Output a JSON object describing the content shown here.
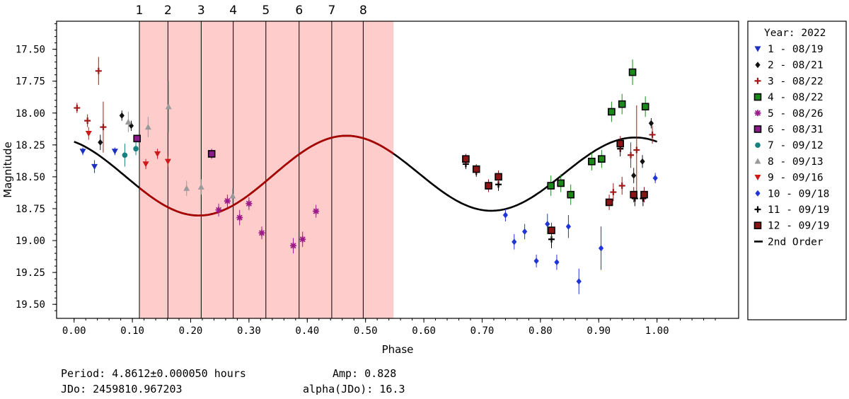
{
  "chart_data": {
    "type": "scatter",
    "xlabel": "Phase",
    "ylabel": "Magnitude",
    "xlim": [
      -0.03,
      1.14
    ],
    "ylim": [
      19.61,
      17.28
    ],
    "y_inverted": true,
    "xticks": [
      0.0,
      0.1,
      0.2,
      0.3,
      0.4,
      0.5,
      0.6,
      0.7,
      0.8,
      0.9,
      1.0
    ],
    "xtick_labels": [
      "0.00",
      "0.10",
      "0.20",
      "0.30",
      "0.40",
      "0.50",
      "0.60",
      "0.70",
      "0.80",
      "0.90",
      "1.00"
    ],
    "yticks": [
      17.5,
      17.75,
      18.0,
      18.25,
      18.5,
      18.75,
      19.0,
      19.25,
      19.5
    ],
    "ytick_labels": [
      "17.50",
      "17.75",
      "18.00",
      "18.25",
      "18.50",
      "18.75",
      "19.00",
      "19.25",
      "19.50"
    ],
    "shaded_region": {
      "x_start": 0.112,
      "x_end": 0.548,
      "color": "#ffcccc"
    },
    "markers": [
      {
        "label": "1",
        "x": 0.112
      },
      {
        "label": "2",
        "x": 0.161
      },
      {
        "label": "3",
        "x": 0.218
      },
      {
        "label": "4",
        "x": 0.273
      },
      {
        "label": "5",
        "x": 0.329
      },
      {
        "label": "6",
        "x": 0.386
      },
      {
        "label": "7",
        "x": 0.442
      },
      {
        "label": "8",
        "x": 0.496
      }
    ],
    "fit": {
      "name": "2nd Order",
      "mean": 18.485,
      "amp1": 0.02,
      "phi1": 1.0,
      "amp2": 0.3,
      "phi2": 2.7,
      "highlight_range": [
        0.112,
        0.548
      ],
      "highlight_color": "#aa0000",
      "color": "#000000"
    },
    "legend_title": "Year: 2022",
    "series": [
      {
        "name": "1 - 08/19",
        "marker": "tri-down",
        "color": "#1c2fc4",
        "points": [
          [
            0.015,
            18.3,
            0.03
          ],
          [
            0.035,
            18.42,
            0.05
          ],
          [
            0.07,
            18.3,
            0.03
          ]
        ]
      },
      {
        "name": "2 - 08/21",
        "marker": "diamond",
        "color": "#111111",
        "points": [
          [
            0.045,
            18.23,
            0.06
          ],
          [
            0.082,
            18.02,
            0.04
          ],
          [
            0.098,
            18.1,
            0.04
          ],
          [
            0.96,
            18.49,
            0.06
          ],
          [
            0.975,
            18.38,
            0.05
          ],
          [
            0.99,
            18.08,
            0.04
          ]
        ]
      },
      {
        "name": "3 - 08/22",
        "marker": "plus",
        "color": "#a01818",
        "points": [
          [
            0.005,
            17.96,
            0.04
          ],
          [
            0.023,
            18.06,
            0.05
          ],
          [
            0.042,
            17.67,
            0.11
          ],
          [
            0.05,
            18.11,
            0.2
          ],
          [
            0.925,
            18.62,
            0.07
          ],
          [
            0.94,
            18.57,
            0.07
          ],
          [
            0.955,
            18.33,
            0.1
          ],
          [
            0.965,
            18.29,
            0.35
          ],
          [
            0.992,
            18.17,
            0.07
          ]
        ]
      },
      {
        "name": "4 - 08/22",
        "marker": "square",
        "color": "#1b8a1b",
        "points": [
          [
            0.818,
            18.57,
            0.08
          ],
          [
            0.835,
            18.55,
            0.07
          ],
          [
            0.852,
            18.64,
            0.08
          ],
          [
            0.888,
            18.38,
            0.07
          ],
          [
            0.905,
            18.36,
            0.07
          ],
          [
            0.922,
            17.99,
            0.08
          ],
          [
            0.94,
            17.93,
            0.08
          ],
          [
            0.958,
            17.68,
            0.1
          ],
          [
            0.98,
            17.95,
            0.08
          ]
        ]
      },
      {
        "name": "5 - 08/26",
        "marker": "star",
        "color": "#9c1a8a",
        "points": [
          [
            0.248,
            18.76,
            0.05
          ],
          [
            0.263,
            18.69,
            0.05
          ],
          [
            0.284,
            18.82,
            0.06
          ],
          [
            0.3,
            18.71,
            0.05
          ],
          [
            0.322,
            18.94,
            0.05
          ],
          [
            0.376,
            19.04,
            0.06
          ],
          [
            0.392,
            18.99,
            0.06
          ],
          [
            0.415,
            18.77,
            0.05
          ]
        ]
      },
      {
        "name": "6 - 08/31",
        "marker": "square",
        "color": "#8b1a8b",
        "points": [
          [
            0.108,
            18.2,
            0.03
          ],
          [
            0.236,
            18.32,
            0.04
          ]
        ]
      },
      {
        "name": "7 - 09/12",
        "marker": "circle",
        "color": "#18807e",
        "points": [
          [
            0.087,
            18.33,
            0.09
          ],
          [
            0.106,
            18.28,
            0.05
          ]
        ]
      },
      {
        "name": "8 - 09/13",
        "marker": "tri-up",
        "color": "#9a9a9a",
        "points": [
          [
            0.093,
            18.07,
            0.08
          ],
          [
            0.127,
            18.11,
            0.08
          ],
          [
            0.162,
            17.95,
            0.2
          ],
          [
            0.193,
            18.59,
            0.06
          ],
          [
            0.218,
            18.58,
            0.06
          ],
          [
            0.272,
            18.65,
            0.06
          ]
        ]
      },
      {
        "name": "9 - 09/16",
        "marker": "tri-down",
        "color": "#d01818",
        "points": [
          [
            0.123,
            18.4,
            0.04
          ],
          [
            0.143,
            18.32,
            0.04
          ],
          [
            0.161,
            18.38,
            0.04
          ],
          [
            0.025,
            18.16,
            0.05
          ]
        ]
      },
      {
        "name": "10 - 09/18",
        "marker": "diamond",
        "color": "#1f35d8",
        "points": [
          [
            0.74,
            18.8,
            0.05
          ],
          [
            0.755,
            19.01,
            0.06
          ],
          [
            0.773,
            18.93,
            0.06
          ],
          [
            0.793,
            19.16,
            0.05
          ],
          [
            0.812,
            18.87,
            0.08
          ],
          [
            0.828,
            19.17,
            0.06
          ],
          [
            0.848,
            18.89,
            0.09
          ],
          [
            0.866,
            19.32,
            0.1
          ],
          [
            0.904,
            19.06,
            0.17
          ],
          [
            0.997,
            18.51,
            0.04
          ]
        ]
      },
      {
        "name": "11 - 09/19",
        "marker": "plus",
        "color": "#000000",
        "points": [
          [
            0.672,
            18.4,
            0.04
          ],
          [
            0.69,
            18.46,
            0.04
          ],
          [
            0.728,
            18.56,
            0.05
          ],
          [
            0.819,
            18.99,
            0.07
          ],
          [
            0.937,
            18.28,
            0.06
          ],
          [
            0.962,
            18.67,
            0.06
          ],
          [
            0.976,
            18.67,
            0.06
          ]
        ]
      },
      {
        "name": "12 - 09/19",
        "marker": "square",
        "color": "#8b1414",
        "points": [
          [
            0.672,
            18.36,
            0.04
          ],
          [
            0.69,
            18.44,
            0.04
          ],
          [
            0.711,
            18.57,
            0.05
          ],
          [
            0.728,
            18.5,
            0.05
          ],
          [
            0.819,
            18.92,
            0.06
          ],
          [
            0.918,
            18.7,
            0.06
          ],
          [
            0.937,
            18.24,
            0.06
          ],
          [
            0.96,
            18.64,
            0.06
          ],
          [
            0.978,
            18.64,
            0.06
          ]
        ]
      }
    ]
  },
  "footer": {
    "period": "Period: 4.8612±0.000050 hours",
    "amp": "Amp: 0.828",
    "jdo": "JDo: 2459810.967203",
    "alpha": "alpha(JDo): 16.3"
  }
}
